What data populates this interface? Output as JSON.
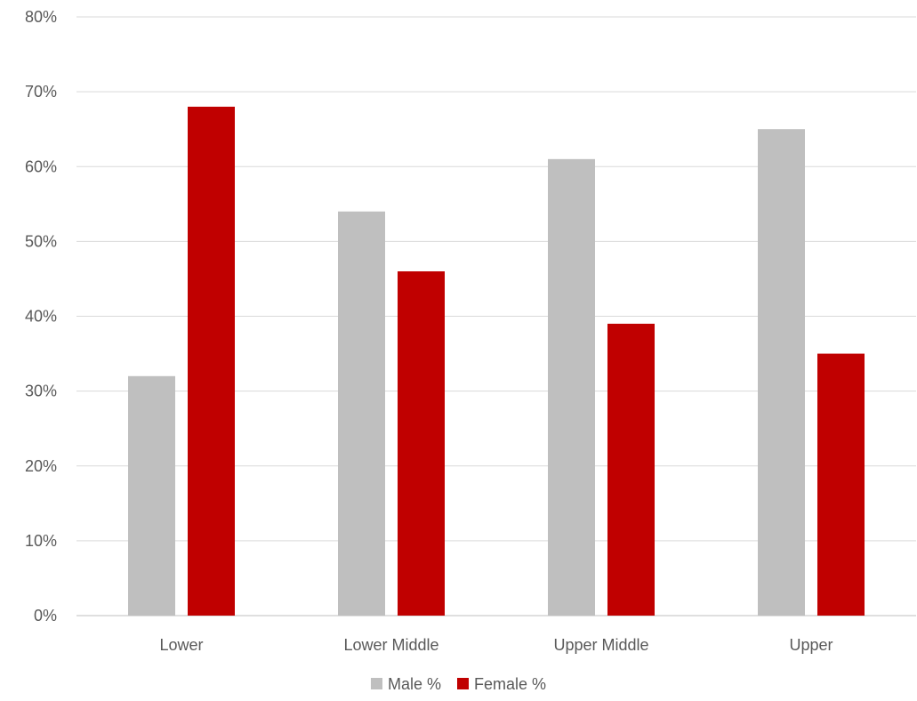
{
  "chart_data": {
    "type": "bar",
    "categories": [
      "Lower",
      "Lower Middle",
      "Upper Middle",
      "Upper"
    ],
    "series": [
      {
        "name": "Male %",
        "values": [
          32,
          54,
          61,
          65
        ],
        "color": "#bfbfbf"
      },
      {
        "name": "Female %",
        "values": [
          68,
          46,
          39,
          35
        ],
        "color": "#c00000"
      }
    ],
    "ylim": [
      0,
      80
    ],
    "yticks": [
      0,
      10,
      20,
      30,
      40,
      50,
      60,
      70,
      80
    ],
    "ytick_format": "percent",
    "grid": true,
    "legend_position": "bottom"
  }
}
